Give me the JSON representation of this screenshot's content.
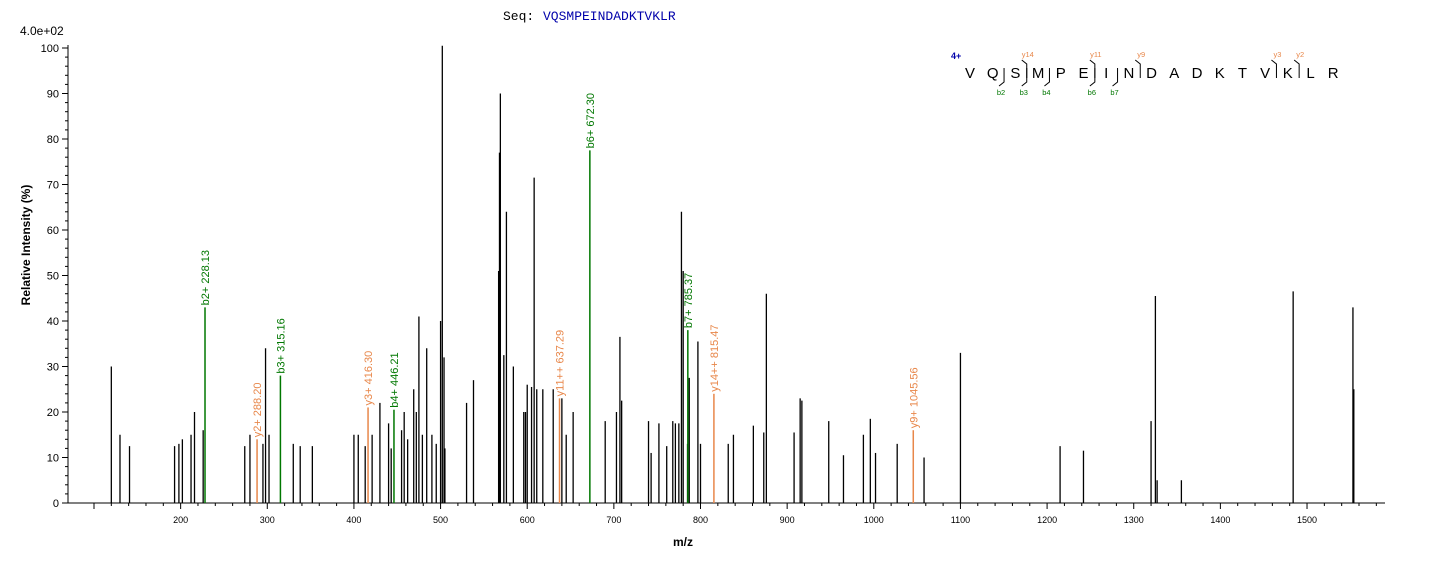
{
  "chart_data": {
    "type": "bar",
    "seq_label": "Seq:",
    "seq_value": "VQSMPEINDADKTVKLR",
    "scale_label": "4.0e+02",
    "xlabel": "m/z",
    "ylabel": "Relative   Intensity (%)",
    "xlim": [
      70,
      1590
    ],
    "ylim": [
      0,
      100
    ],
    "x_ticks": [
      200,
      300,
      400,
      500,
      600,
      700,
      800,
      900,
      1000,
      1100,
      1200,
      1300,
      1400,
      1500
    ],
    "y_ticks": [
      0,
      10,
      20,
      30,
      40,
      50,
      60,
      70,
      80,
      90,
      100
    ],
    "colors": {
      "unassigned": "#000000",
      "b_ion": "#007700",
      "y_ion": "#e8874a",
      "charge": "#0000aa",
      "seq": "#0000aa"
    },
    "peaks": [
      [
        120,
        30
      ],
      [
        130,
        15
      ],
      [
        141,
        12.5
      ],
      [
        193,
        12.5
      ],
      [
        198,
        13
      ],
      [
        202,
        14
      ],
      [
        212,
        15
      ],
      [
        216,
        20
      ],
      [
        226,
        16
      ],
      [
        274,
        12.5
      ],
      [
        280,
        15
      ],
      [
        295,
        13
      ],
      [
        298,
        34
      ],
      [
        302,
        15
      ],
      [
        330,
        13
      ],
      [
        338,
        12.5
      ],
      [
        352,
        12.5
      ],
      [
        400,
        15
      ],
      [
        405,
        15
      ],
      [
        413,
        12.5
      ],
      [
        421,
        15
      ],
      [
        430,
        22
      ],
      [
        440,
        17.5
      ],
      [
        443,
        12
      ],
      [
        455,
        16
      ],
      [
        458,
        20
      ],
      [
        462,
        14
      ],
      [
        469,
        25
      ],
      [
        472,
        20
      ],
      [
        475,
        41
      ],
      [
        479,
        15
      ],
      [
        484,
        34
      ],
      [
        490,
        15
      ],
      [
        495,
        13
      ],
      [
        500,
        40
      ],
      [
        502,
        100.5
      ],
      [
        504,
        32
      ],
      [
        505,
        12
      ],
      [
        530,
        22
      ],
      [
        538,
        27
      ],
      [
        567,
        51
      ],
      [
        568,
        77
      ],
      [
        569,
        90
      ],
      [
        573,
        32.5
      ],
      [
        576,
        64
      ],
      [
        584,
        30
      ],
      [
        596,
        20
      ],
      [
        598,
        20
      ],
      [
        600,
        26
      ],
      [
        605,
        25.5
      ],
      [
        608,
        71.5
      ],
      [
        611,
        25
      ],
      [
        618,
        25
      ],
      [
        630,
        25
      ],
      [
        640,
        23
      ],
      [
        645,
        15
      ],
      [
        653,
        20
      ],
      [
        690,
        18
      ],
      [
        703,
        20
      ],
      [
        707,
        36.5
      ],
      [
        709,
        22.5
      ],
      [
        740,
        18
      ],
      [
        743,
        11
      ],
      [
        752,
        17.5
      ],
      [
        761,
        12.5
      ],
      [
        768,
        18
      ],
      [
        771,
        17.5
      ],
      [
        775,
        17.5
      ],
      [
        778,
        64
      ],
      [
        780,
        51
      ],
      [
        785,
        13
      ],
      [
        787,
        27.5
      ],
      [
        797,
        35.5
      ],
      [
        800,
        13
      ],
      [
        832,
        13
      ],
      [
        838,
        15
      ],
      [
        861,
        17
      ],
      [
        873,
        15.5
      ],
      [
        876,
        46
      ],
      [
        908,
        15.5
      ],
      [
        915,
        23
      ],
      [
        917,
        22.5
      ],
      [
        948,
        18
      ],
      [
        965,
        10.5
      ],
      [
        988,
        15
      ],
      [
        996,
        18.5
      ],
      [
        1002,
        11
      ],
      [
        1027,
        13
      ],
      [
        1058,
        10
      ],
      [
        1100,
        33
      ],
      [
        1215,
        12.5
      ],
      [
        1242,
        11.5
      ],
      [
        1320,
        18
      ],
      [
        1325,
        45.5
      ],
      [
        1327,
        5
      ],
      [
        1355,
        5
      ],
      [
        1484,
        46.5
      ],
      [
        1553,
        43
      ],
      [
        1554,
        25
      ]
    ],
    "annotated_peaks": [
      {
        "x": 228.13,
        "y": 43,
        "label": "b2+ 228.13",
        "ion": "b"
      },
      {
        "x": 288.2,
        "y": 14,
        "label": "y2+ 288.20",
        "ion": "y"
      },
      {
        "x": 315.16,
        "y": 28,
        "label": "b3+ 315.16",
        "ion": "b"
      },
      {
        "x": 416.3,
        "y": 21,
        "label": "y3+ 416.30",
        "ion": "y"
      },
      {
        "x": 446.21,
        "y": 20.5,
        "label": "b4+ 446.21",
        "ion": "b"
      },
      {
        "x": 637.29,
        "y": 23,
        "label": "y11++ 637.29",
        "ion": "y"
      },
      {
        "x": 672.3,
        "y": 77.5,
        "label": "b6+ 672.30",
        "ion": "b"
      },
      {
        "x": 785.37,
        "y": 38,
        "label": "b7+ 785.37",
        "ion": "b"
      },
      {
        "x": 815.47,
        "y": 24,
        "label": "y14++ 815.47",
        "ion": "y"
      },
      {
        "x": 1045.56,
        "y": 16,
        "label": "y9+ 1045.56",
        "ion": "y"
      }
    ],
    "sequence_map": {
      "charge": "4+",
      "residues": [
        "V",
        "Q",
        "S",
        "M",
        "P",
        "E",
        "I",
        "N",
        "D",
        "A",
        "D",
        "K",
        "T",
        "V",
        "K",
        "L",
        "R"
      ],
      "y_labels": [
        {
          "after_index": 2,
          "text": "y14"
        },
        {
          "after_index": 5,
          "text": "y11"
        },
        {
          "after_index": 7,
          "text": "y9"
        },
        {
          "after_index": 13,
          "text": "y3"
        },
        {
          "after_index": 14,
          "text": "y2"
        }
      ],
      "b_labels": [
        {
          "after_index": 1,
          "text": "b2"
        },
        {
          "after_index": 2,
          "text": "b3"
        },
        {
          "after_index": 3,
          "text": "b4"
        },
        {
          "after_index": 5,
          "text": "b6"
        },
        {
          "after_index": 6,
          "text": "b7"
        }
      ]
    }
  }
}
